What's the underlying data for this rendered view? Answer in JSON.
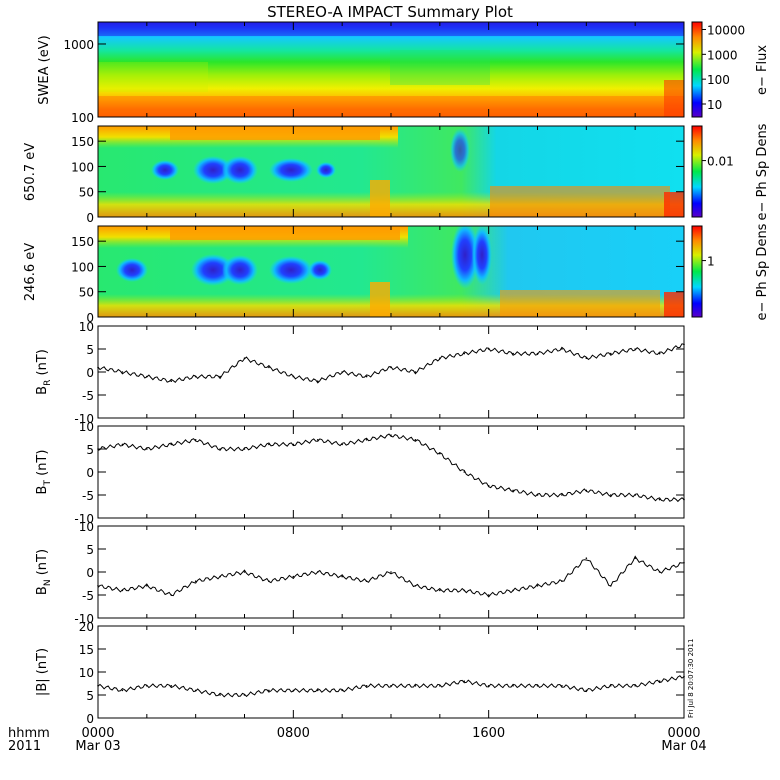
{
  "title": "STEREO-A IMPACT Summary Plot",
  "chart_data": [
    {
      "type": "heatmap",
      "ylabel": "SWEA (eV)",
      "yscale": "log",
      "ylim": [
        100,
        2000
      ],
      "yticks": [
        "100",
        "1000"
      ],
      "colorbar_label": "e− Flux",
      "colorbar_ticks": [
        "10",
        "100",
        "1000",
        "10000"
      ],
      "colorbar_range": [
        3,
        20000
      ],
      "colorscale": "rainbow"
    },
    {
      "type": "heatmap",
      "ylabel": "650.7 eV",
      "ylim": [
        0,
        180
      ],
      "yticks": [
        "0",
        "50",
        "100",
        "150"
      ],
      "colorbar_label": "e− Ph Sp Dens",
      "colorbar_ticks": [
        "0.01"
      ],
      "colorscale": "rainbow"
    },
    {
      "type": "heatmap",
      "ylabel": "246.6 eV",
      "ylim": [
        0,
        180
      ],
      "yticks": [
        "0",
        "50",
        "100",
        "150"
      ],
      "colorbar_label": "e− Ph Sp Dens",
      "colorbar_ticks": [
        "1"
      ],
      "colorscale": "rainbow"
    },
    {
      "type": "line",
      "ylabel": "B",
      "ylabel_sub": "R",
      "ylabel_unit": " (nT)",
      "ylim": [
        -10,
        10
      ],
      "yticks": [
        "-10",
        "-5",
        "0",
        "5",
        "10"
      ],
      "x": [
        0,
        1,
        2,
        3,
        4,
        5,
        6,
        7,
        8,
        9,
        10,
        11,
        12,
        13,
        14,
        15,
        16,
        17,
        18,
        19,
        20,
        21,
        22,
        23,
        24
      ],
      "y": [
        1,
        0,
        -1,
        -2,
        -1,
        -1,
        3,
        1,
        -1,
        -2,
        0,
        -1,
        1,
        0,
        3,
        4,
        5,
        4,
        4,
        5,
        3,
        4,
        5,
        4,
        6
      ]
    },
    {
      "type": "line",
      "ylabel": "B",
      "ylabel_sub": "T",
      "ylabel_unit": " (nT)",
      "ylim": [
        -10,
        10
      ],
      "yticks": [
        "-10",
        "-5",
        "0",
        "5",
        "10"
      ],
      "x": [
        0,
        1,
        2,
        3,
        4,
        5,
        6,
        7,
        8,
        9,
        10,
        11,
        12,
        13,
        14,
        15,
        16,
        17,
        18,
        19,
        20,
        21,
        22,
        23,
        24
      ],
      "y": [
        5,
        6,
        5,
        6,
        7,
        5,
        5,
        6,
        6,
        7,
        6,
        7,
        8,
        7,
        4,
        0,
        -3,
        -4,
        -5,
        -5,
        -4,
        -5,
        -5,
        -6,
        -6
      ]
    },
    {
      "type": "line",
      "ylabel": "B",
      "ylabel_sub": "N",
      "ylabel_unit": " (nT)",
      "ylim": [
        -10,
        10
      ],
      "yticks": [
        "-10",
        "-5",
        "0",
        "5",
        "10"
      ],
      "x": [
        0,
        1,
        2,
        3,
        4,
        5,
        6,
        7,
        8,
        9,
        10,
        11,
        12,
        13,
        14,
        15,
        16,
        17,
        18,
        19,
        20,
        21,
        22,
        23,
        24
      ],
      "y": [
        -3,
        -4,
        -3,
        -5,
        -2,
        -1,
        0,
        -2,
        -1,
        0,
        -1,
        -2,
        0,
        -3,
        -4,
        -4,
        -5,
        -4,
        -3,
        -2,
        3,
        -3,
        3,
        0,
        2
      ]
    },
    {
      "type": "line",
      "ylabel": "|B| (nT)",
      "ylim": [
        0,
        20
      ],
      "yticks": [
        "0",
        "5",
        "10",
        "15",
        "20"
      ],
      "x": [
        0,
        1,
        2,
        3,
        4,
        5,
        6,
        7,
        8,
        9,
        10,
        11,
        12,
        13,
        14,
        15,
        16,
        17,
        18,
        19,
        20,
        21,
        22,
        23,
        24
      ],
      "y": [
        7,
        6,
        7,
        7,
        6,
        5,
        5,
        6,
        6,
        6,
        6,
        7,
        7,
        7,
        7,
        8,
        7,
        7,
        7,
        7,
        6,
        7,
        7,
        8,
        9
      ]
    }
  ],
  "xaxis": {
    "ticks": [
      "0000",
      "0800",
      "1600",
      "0000"
    ],
    "dates": [
      "Mar 03",
      "Mar 04"
    ],
    "label_line1": "hhmm",
    "label_line2": "2011",
    "range": [
      0,
      24
    ]
  },
  "stamp": "Fri Jul  8 20:07:30 2011"
}
